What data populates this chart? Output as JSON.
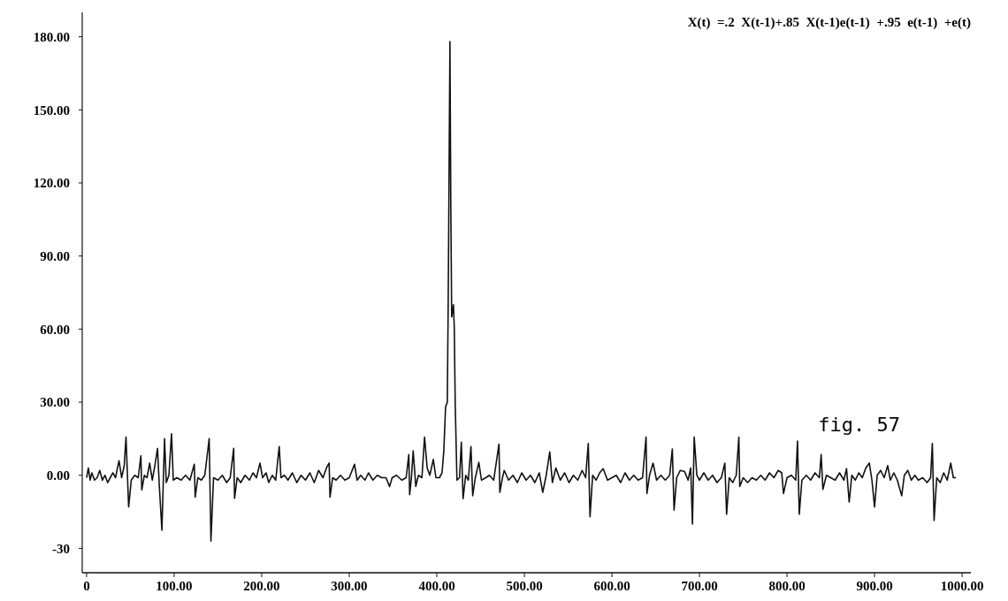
{
  "chart_data": {
    "type": "line",
    "title": "X(t)  =.2  X(t-1)+.85  X(t-1)e(t-1)  +.95  e(t-1)  +e(t)",
    "annotations": [
      "fig. 57"
    ],
    "series": [
      {
        "color": "#111111",
        "x": [
          0,
          2,
          4,
          6,
          9,
          12,
          15,
          18,
          21,
          24,
          27,
          30,
          33,
          37,
          40,
          43,
          45,
          48,
          51,
          55,
          59,
          62,
          63,
          66,
          69,
          72,
          75,
          78,
          81,
          83,
          86,
          89,
          91,
          94,
          97,
          99,
          103,
          108,
          113,
          118,
          123,
          124,
          127,
          131,
          135,
          140,
          142,
          145,
          150,
          155,
          160,
          164,
          168,
          169,
          172,
          176,
          181,
          186,
          190,
          194,
          198,
          201,
          205,
          208,
          212,
          216,
          220,
          222,
          226,
          230,
          235,
          240,
          245,
          250,
          255,
          260,
          265,
          270,
          274,
          277,
          278,
          281,
          285,
          290,
          295,
          300,
          306,
          309,
          313,
          318,
          322,
          327,
          332,
          337,
          342,
          346,
          349,
          354,
          360,
          365,
          368,
          369,
          371,
          373,
          376,
          379,
          383,
          386,
          389,
          392,
          396,
          399,
          403,
          406,
          408,
          410,
          412,
          413,
          415,
          416,
          417,
          419,
          420,
          421,
          423,
          426,
          428,
          430,
          433,
          436,
          439,
          441,
          444,
          448,
          451,
          456,
          460,
          465,
          471,
          472,
          475,
          477,
          482,
          487,
          492,
          497,
          502,
          507,
          512,
          517,
          521,
          525,
          529,
          532,
          536,
          541,
          546,
          551,
          556,
          561,
          566,
          570,
          573,
          575,
          578,
          582,
          586,
          590,
          595,
          600,
          605,
          610,
          615,
          620,
          625,
          630,
          635,
          639,
          640,
          643,
          647,
          651,
          656,
          661,
          666,
          669,
          671,
          674,
          678,
          683,
          687,
          690,
          692,
          694,
          697,
          700,
          705,
          710,
          715,
          720,
          725,
          729,
          731,
          734,
          738,
          742,
          745,
          746,
          750,
          755,
          760,
          765,
          770,
          775,
          780,
          785,
          790,
          794,
          796,
          800,
          805,
          810,
          812,
          814,
          817,
          822,
          827,
          832,
          837,
          839,
          841,
          845,
          850,
          855,
          860,
          865,
          868,
          871,
          874,
          878,
          882,
          886,
          890,
          894,
          897,
          900,
          903,
          907,
          911,
          915,
          918,
          922,
          926,
          931,
          934,
          938,
          942,
          946,
          950,
          955,
          960,
          964,
          966,
          968,
          971,
          975,
          979,
          983,
          987,
          990,
          993
        ],
        "values": [
          -1,
          3,
          -2,
          1,
          -2,
          -1,
          2,
          -2,
          0,
          -3,
          -1,
          1,
          -1,
          6,
          -1,
          4,
          15.7,
          -13,
          -2,
          0,
          -1,
          8,
          -6,
          0,
          -1,
          5,
          -2,
          4,
          11,
          -4,
          -22.6,
          15,
          -3,
          0,
          17,
          -2,
          -1,
          -2,
          0,
          -2,
          4.5,
          -9,
          -1,
          -2,
          0,
          15,
          -27,
          -1,
          -2,
          0,
          -3,
          -1,
          11,
          -9.5,
          -1,
          -3,
          0,
          -2,
          1,
          -1,
          5,
          -1,
          1,
          -3,
          0,
          -2,
          11.8,
          -1,
          0,
          -2,
          1,
          -3,
          0,
          -2,
          1,
          -3,
          2,
          -1,
          3,
          5,
          -9,
          -1,
          -2,
          0,
          -2,
          -1,
          4.5,
          -2,
          0,
          -2,
          1,
          -2,
          0,
          -1,
          -1,
          -4.6,
          -1,
          0,
          -2,
          -1,
          8.5,
          -8,
          -1,
          10,
          -4.6,
          0,
          -1,
          15.7,
          3,
          0,
          6.5,
          -1,
          -1,
          1,
          10,
          28,
          30,
          70,
          178,
          110,
          65,
          70,
          60,
          30,
          -2,
          -1,
          13.6,
          -9.6,
          0,
          -2,
          11.8,
          -8.4,
          -1,
          5.3,
          -2,
          -1,
          0,
          -2,
          12.8,
          -7,
          -1,
          2,
          -2,
          0,
          -3,
          1,
          -2,
          0,
          -3,
          1,
          -7,
          0,
          9.6,
          -3,
          3,
          -2,
          1,
          -3,
          0,
          -2,
          2,
          -1,
          13,
          -17,
          0,
          -2,
          1,
          2.7,
          -2,
          -1,
          0,
          -3,
          1,
          -2,
          0,
          -2,
          -1,
          15.7,
          -7.5,
          0,
          5,
          -2,
          0,
          -2,
          0,
          10.8,
          -14.3,
          -1,
          2,
          1.5,
          -2,
          3,
          -20,
          15.7,
          0,
          -2,
          1,
          -2,
          0,
          -3,
          -1,
          5,
          -16,
          -1,
          -3,
          0,
          15.7,
          -4.6,
          -1,
          -3,
          -1,
          -2,
          0,
          -2,
          1,
          -1,
          2,
          1,
          -7.5,
          -1,
          0,
          -2,
          14,
          -16,
          -2,
          0,
          -2,
          1,
          -1,
          8.5,
          -5.8,
          0,
          -1,
          -2,
          1,
          -2,
          2.7,
          -11,
          0,
          -2,
          1,
          -1,
          3,
          5,
          -2,
          -13,
          0,
          2,
          -1,
          4,
          -2,
          1,
          -2,
          -8.4,
          0,
          2,
          -2,
          0,
          -2,
          -1,
          -3,
          -1,
          13,
          -18.6,
          -1,
          -3,
          1,
          -2,
          5,
          -1,
          -1
        ]
      }
    ],
    "xlim": [
      -5,
      1010
    ],
    "xticks": [
      0,
      {
        "value": 100,
        "label": "100.00"
      },
      {
        "value": 200,
        "label": "200.00"
      },
      {
        "value": 300,
        "label": "300.00"
      },
      {
        "value": 400,
        "label": "400.00"
      },
      {
        "value": 500,
        "label": "500.00"
      },
      {
        "value": 600,
        "label": "600.00"
      },
      {
        "value": 700,
        "label": "700.00"
      },
      {
        "value": 800,
        "label": "800.00"
      },
      {
        "value": 900,
        "label": "900.00"
      },
      {
        "value": 1000,
        "label": "1000.00"
      }
    ],
    "ylim": [
      -40,
      190
    ],
    "yticks": [
      -30,
      {
        "value": 0,
        "label": "0.00"
      },
      {
        "value": 30,
        "label": "30.00"
      },
      {
        "value": 60,
        "label": "60.00"
      },
      {
        "value": 90,
        "label": "90.00"
      },
      {
        "value": 120,
        "label": "120.00"
      },
      {
        "value": 150,
        "label": "150.00"
      },
      {
        "value": 180,
        "label": "180.00"
      }
    ],
    "grid": false,
    "marker": "none",
    "line_style": "solid"
  }
}
